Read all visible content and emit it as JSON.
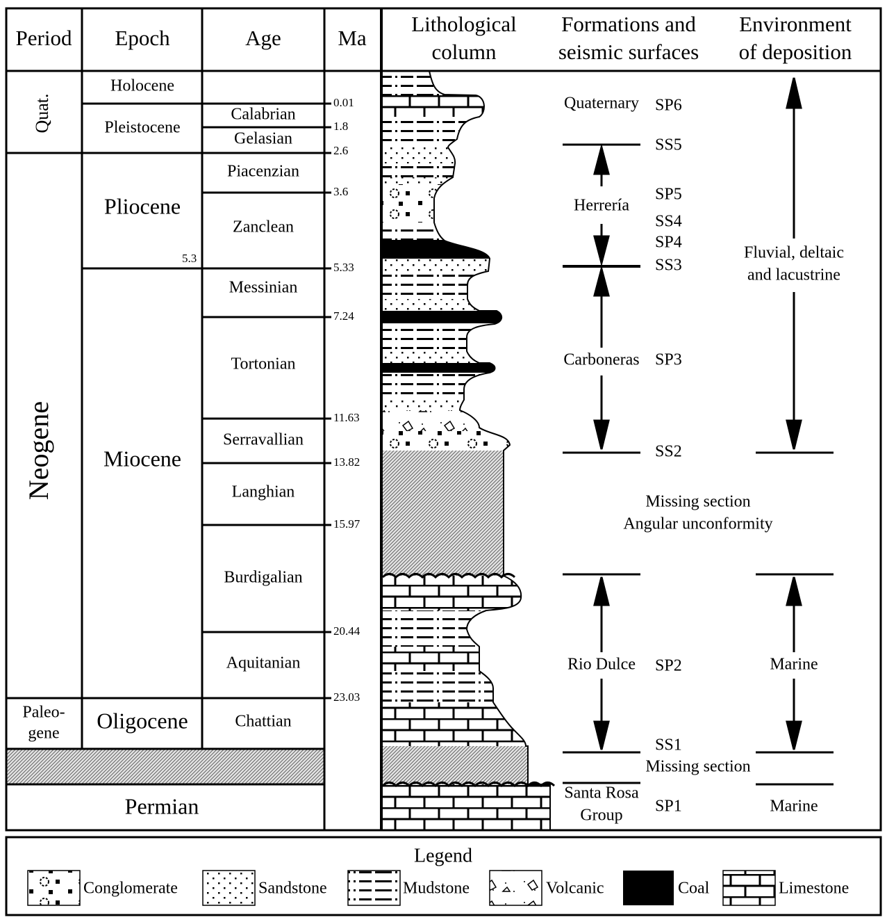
{
  "header": {
    "period": "Period",
    "epoch": "Epoch",
    "age": "Age",
    "ma": "Ma",
    "lithology": [
      "Lithological",
      "column"
    ],
    "formations": [
      "Formations and",
      "seismic surfaces"
    ],
    "environment": [
      "Environment",
      "of deposition"
    ]
  },
  "periods": {
    "quaternary": "Quat.",
    "neogene": "Neogene",
    "paleogene": [
      "Paleo-",
      "gene"
    ],
    "permian": "Permian"
  },
  "epochs": {
    "holocene": "Holocene",
    "pleistocene": "Pleistocene",
    "pliocene": "Pliocene",
    "pliocene_base": "5.3",
    "miocene": "Miocene",
    "oligocene": "Oligocene"
  },
  "ages": [
    "Calabrian",
    "Gelasian",
    "Piacenzian",
    "Zanclean",
    "Messinian",
    "Tortonian",
    "Serravallian",
    "Langhian",
    "Burdigalian",
    "Aquitanian",
    "Chattian"
  ],
  "ma_ticks": [
    "0.01",
    "1.8",
    "2.6",
    "3.6",
    "5.33",
    "7.24",
    "11.63",
    "13.82",
    "15.97",
    "20.44",
    "23.03"
  ],
  "formations": {
    "quaternary": "Quaternary",
    "herreria": "Herrería",
    "carboneras": "Carboneras",
    "rio_dulce": "Rio Dulce",
    "santa_rosa": [
      "Santa Rosa",
      "Group"
    ],
    "missing_1": [
      "Missing section",
      "Angular unconformity"
    ],
    "missing_2": "Missing section"
  },
  "surfaces": {
    "sp6": "SP6",
    "ss5": "SS5",
    "sp5": "SP5",
    "ss4": "SS4",
    "sp4": "SP4",
    "ss3": "SS3",
    "sp3": "SP3",
    "ss2": "SS2",
    "sp2": "SP2",
    "ss1": "SS1",
    "sp1": "SP1"
  },
  "environment": {
    "upper": [
      "Fluvial, deltaic",
      "and lacustrine"
    ],
    "middle": "Marine",
    "lower": "Marine"
  },
  "legend": {
    "title": "Legend",
    "items": [
      "Conglomerate",
      "Sandstone",
      "Mudstone",
      "Volcanic",
      "Coal",
      "Limestone"
    ]
  }
}
